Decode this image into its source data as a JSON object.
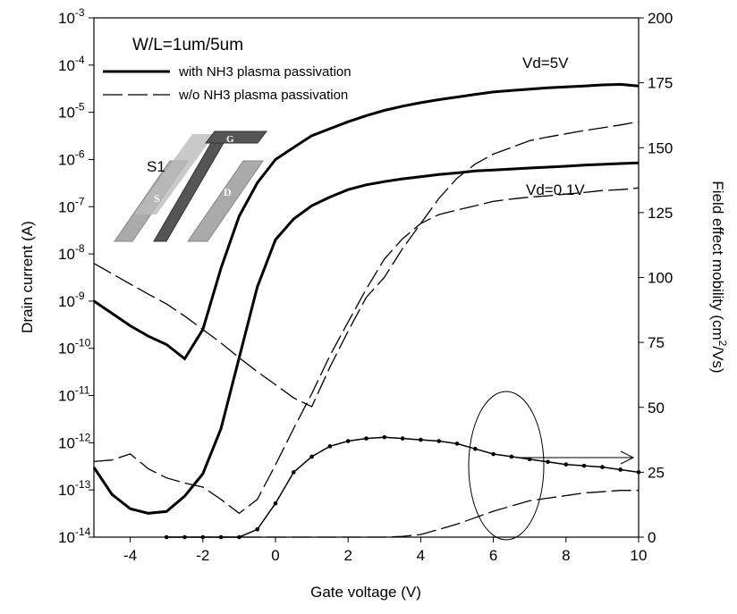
{
  "chart_data": {
    "type": "line",
    "xlabel": "Gate voltage (V)",
    "ylabel": "Drain current (A)",
    "y2label": [
      "Field effect mobility (cm",
      "2",
      "/Vs)"
    ],
    "yscale": "log",
    "xlim": [
      -5,
      10
    ],
    "xticks": [
      -4,
      -2,
      0,
      2,
      4,
      6,
      8,
      10
    ],
    "ylim": [
      1e-14,
      0.001
    ],
    "yticks": [
      {
        "value": 1e-14,
        "label": "10-14"
      },
      {
        "value": 1e-13,
        "label": "10-13"
      },
      {
        "value": 1e-12,
        "label": "10-12"
      },
      {
        "value": 1e-11,
        "label": "10-11"
      },
      {
        "value": 1e-10,
        "label": "10-10"
      },
      {
        "value": 1e-09,
        "label": "10-9"
      },
      {
        "value": 1e-08,
        "label": "10-8"
      },
      {
        "value": 1e-07,
        "label": "10-7"
      },
      {
        "value": 1e-06,
        "label": "10-6"
      },
      {
        "value": 1e-05,
        "label": "10-5"
      },
      {
        "value": 0.0001,
        "label": "10-4"
      },
      {
        "value": 0.001,
        "label": "10-3"
      }
    ],
    "y2lim": [
      0,
      200
    ],
    "y2ticks": [
      0,
      25,
      50,
      75,
      100,
      125,
      150,
      175,
      200
    ],
    "annotations": [
      "W/L=1um/5um",
      "Vd=5V",
      "Vd=0.1V",
      "S1",
      "G",
      "S",
      "D"
    ],
    "x": [
      -5,
      -4.5,
      -4,
      -3.5,
      -3,
      -2.5,
      -2,
      -1.5,
      -1,
      -0.5,
      0,
      0.5,
      1,
      1.5,
      2,
      2.5,
      3,
      3.5,
      4,
      4.5,
      5,
      5.5,
      6,
      6.5,
      7,
      7.5,
      8,
      8.5,
      9,
      9.5,
      10
    ],
    "series": [
      {
        "name": "with NH3 plasma passivation",
        "color": "#000000",
        "style": "solid",
        "values": [
          1e-09,
          5.5e-10,
          3e-10,
          1.8e-10,
          1.2e-10,
          6e-11,
          2.5e-10,
          5e-09,
          6.3e-08,
          3.2e-07,
          1e-06,
          1.8e-06,
          3.2e-06,
          4.5e-06,
          6.3e-06,
          8.5e-06,
          1.1e-05,
          1.35e-05,
          1.6e-05,
          1.85e-05,
          2.1e-05,
          2.4e-05,
          2.7e-05,
          2.9e-05,
          3.1e-05,
          3.3e-05,
          3.45e-05,
          3.6e-05,
          3.8e-05,
          3.9e-05,
          3.6e-05
        ]
      },
      {
        "color": "#000000",
        "style": "solid",
        "values": [
          3e-13,
          8e-14,
          4e-14,
          3.2e-14,
          3.5e-14,
          7.4e-14,
          2.2e-13,
          2e-12,
          6.3e-11,
          2e-09,
          2e-08,
          5.5e-08,
          1.05e-07,
          1.6e-07,
          2.3e-07,
          2.9e-07,
          3.4e-07,
          3.9e-07,
          4.3e-07,
          4.8e-07,
          5.2e-07,
          5.7e-07,
          6e-07,
          6.3e-07,
          6.6e-07,
          6.9e-07,
          7.2e-07,
          7.6e-07,
          7.9e-07,
          8.2e-07,
          8.5e-07
        ]
      },
      {
        "name": "w/o NH3 plasma passivation",
        "color": "#000000",
        "style": "dashed",
        "values": [
          6.3e-09,
          3.8e-09,
          2.3e-09,
          1.4e-09,
          8.7e-10,
          4.8e-10,
          2.5e-10,
          1.3e-10,
          6.3e-11,
          3.2e-11,
          1.7e-11,
          8.9e-12,
          5.8e-12,
          4e-11,
          2.3e-10,
          1.2e-09,
          3.2e-09,
          1.3e-08,
          4.4e-08,
          1.5e-07,
          4e-07,
          8e-07,
          1.3e-06,
          1.8e-06,
          2.5e-06,
          3e-06,
          3.5e-06,
          4.1e-06,
          4.7e-06,
          5.4e-06,
          6.3e-06
        ]
      },
      {
        "color": "#000000",
        "style": "dashed",
        "values": [
          4e-13,
          4.3e-13,
          5.8e-13,
          2.8e-13,
          1.8e-13,
          1.4e-13,
          1.15e-13,
          6.3e-14,
          3.2e-14,
          6.3e-14,
          3.4e-13,
          2e-12,
          1.1e-11,
          7e-11,
          3.6e-10,
          1.8e-09,
          7.8e-09,
          2.1e-08,
          4.4e-08,
          6.8e-08,
          8.5e-08,
          1.05e-07,
          1.3e-07,
          1.45e-07,
          1.6e-07,
          1.7e-07,
          1.85e-07,
          2e-07,
          2.2e-07,
          2.3e-07,
          2.5e-07
        ]
      },
      {
        "color": "#000000",
        "style": "solid",
        "markers": true,
        "axis": "y2",
        "values": [
          null,
          null,
          null,
          null,
          0,
          0,
          0,
          0,
          0,
          3,
          13,
          25,
          31,
          35,
          37,
          38,
          38.5,
          38,
          37.5,
          37,
          36,
          34,
          32,
          31,
          30,
          29,
          28,
          27.5,
          27,
          26,
          25
        ]
      },
      {
        "color": "#000000",
        "style": "dashed",
        "axis": "y2",
        "values": [
          null,
          null,
          null,
          null,
          0,
          0,
          0,
          0,
          0,
          0,
          0,
          0,
          0,
          0,
          0,
          0,
          0,
          0.3,
          1,
          3,
          5,
          7.5,
          10,
          12,
          14,
          15,
          16,
          17,
          17.5,
          18,
          18
        ]
      }
    ]
  }
}
